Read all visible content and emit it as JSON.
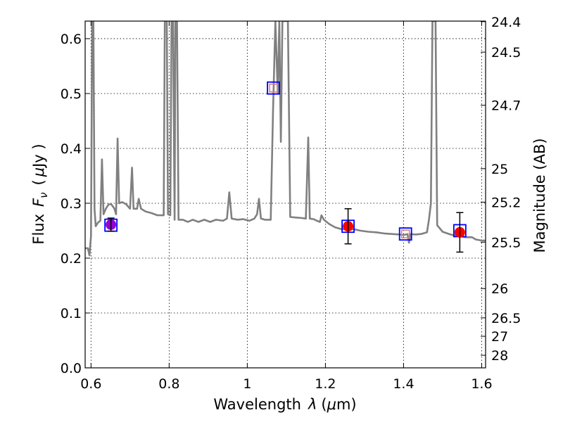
{
  "chart_data": {
    "type": "line",
    "xlabel_prefix": "Wavelength",
    "xlabel_var": "λ",
    "xlabel_unit_open": "(",
    "xlabel_unit_mu": "μ",
    "xlabel_unit_rest": "m)",
    "ylabel_prefix": "Flux",
    "ylabel_var": "F",
    "ylabel_sub": "ν",
    "ylabel_unit_open": "(",
    "ylabel_unit_mu": "μ",
    "ylabel_unit_rest": "Jy )",
    "y2label": "Magnitude (AB)",
    "xlim": [
      0.585,
      1.61
    ],
    "ylim": [
      0.0,
      0.632
    ],
    "grid": true,
    "x_ticks": [
      {
        "v": 0.6,
        "label": "0.6"
      },
      {
        "v": 0.8,
        "label": "0.8"
      },
      {
        "v": 1.0,
        "label": "1"
      },
      {
        "v": 1.2,
        "label": "1.2"
      },
      {
        "v": 1.4,
        "label": "1.4"
      },
      {
        "v": 1.6,
        "label": "1.6"
      }
    ],
    "y_ticks": [
      {
        "v": 0.0,
        "label": "0.0"
      },
      {
        "v": 0.1,
        "label": "0.1"
      },
      {
        "v": 0.2,
        "label": "0.2"
      },
      {
        "v": 0.3,
        "label": "0.3"
      },
      {
        "v": 0.4,
        "label": "0.4"
      },
      {
        "v": 0.5,
        "label": "0.5"
      },
      {
        "v": 0.6,
        "label": "0.6"
      }
    ],
    "y2_ticks": [
      {
        "mag": 24.4,
        "label": "24.4"
      },
      {
        "mag": 24.5,
        "label": "24.5"
      },
      {
        "mag": 24.7,
        "label": "24.7"
      },
      {
        "mag": 25,
        "label": "25"
      },
      {
        "mag": 25.2,
        "label": "25.2"
      },
      {
        "mag": 25.5,
        "label": "25.5"
      },
      {
        "mag": 26,
        "label": "26"
      },
      {
        "mag": 26.5,
        "label": "26.5"
      },
      {
        "mag": 27,
        "label": "27"
      },
      {
        "mag": 28,
        "label": "28"
      }
    ],
    "model_spectrum": {
      "color": "#808080",
      "points": [
        [
          0.585,
          0.218
        ],
        [
          0.592,
          0.218
        ],
        [
          0.596,
          0.205
        ],
        [
          0.6,
          0.24
        ],
        [
          0.603,
          0.632
        ],
        [
          0.606,
          0.632
        ],
        [
          0.609,
          0.29
        ],
        [
          0.612,
          0.258
        ],
        [
          0.618,
          0.265
        ],
        [
          0.624,
          0.268
        ],
        [
          0.628,
          0.38
        ],
        [
          0.632,
          0.28
        ],
        [
          0.638,
          0.29
        ],
        [
          0.645,
          0.298
        ],
        [
          0.652,
          0.298
        ],
        [
          0.66,
          0.29
        ],
        [
          0.664,
          0.28
        ],
        [
          0.668,
          0.418
        ],
        [
          0.672,
          0.3
        ],
        [
          0.68,
          0.302
        ],
        [
          0.69,
          0.298
        ],
        [
          0.7,
          0.29
        ],
        [
          0.705,
          0.365
        ],
        [
          0.709,
          0.29
        ],
        [
          0.718,
          0.29
        ],
        [
          0.722,
          0.308
        ],
        [
          0.728,
          0.29
        ],
        [
          0.74,
          0.285
        ],
        [
          0.755,
          0.282
        ],
        [
          0.77,
          0.278
        ],
        [
          0.786,
          0.278
        ],
        [
          0.789,
          0.632
        ],
        [
          0.794,
          0.632
        ],
        [
          0.797,
          0.28
        ],
        [
          0.803,
          0.278
        ],
        [
          0.806,
          0.632
        ],
        [
          0.81,
          0.632
        ],
        [
          0.814,
          0.27
        ],
        [
          0.816,
          0.632
        ],
        [
          0.82,
          0.632
        ],
        [
          0.824,
          0.27
        ],
        [
          0.835,
          0.27
        ],
        [
          0.848,
          0.266
        ],
        [
          0.86,
          0.27
        ],
        [
          0.875,
          0.266
        ],
        [
          0.89,
          0.27
        ],
        [
          0.905,
          0.266
        ],
        [
          0.92,
          0.27
        ],
        [
          0.938,
          0.268
        ],
        [
          0.948,
          0.272
        ],
        [
          0.954,
          0.32
        ],
        [
          0.96,
          0.272
        ],
        [
          0.975,
          0.27
        ],
        [
          0.99,
          0.271
        ],
        [
          1.005,
          0.268
        ],
        [
          1.018,
          0.272
        ],
        [
          1.025,
          0.28
        ],
        [
          1.03,
          0.308
        ],
        [
          1.035,
          0.272
        ],
        [
          1.045,
          0.27
        ],
        [
          1.06,
          0.27
        ],
        [
          1.066,
          0.47
        ],
        [
          1.072,
          0.632
        ],
        [
          1.078,
          0.5
        ],
        [
          1.082,
          0.632
        ],
        [
          1.086,
          0.412
        ],
        [
          1.09,
          0.632
        ],
        [
          1.098,
          0.632
        ],
        [
          1.104,
          0.632
        ],
        [
          1.11,
          0.275
        ],
        [
          1.125,
          0.274
        ],
        [
          1.14,
          0.273
        ],
        [
          1.15,
          0.272
        ],
        [
          1.156,
          0.42
        ],
        [
          1.16,
          0.272
        ],
        [
          1.17,
          0.271
        ],
        [
          1.178,
          0.268
        ],
        [
          1.186,
          0.266
        ],
        [
          1.19,
          0.278
        ],
        [
          1.196,
          0.27
        ],
        [
          1.21,
          0.262
        ],
        [
          1.225,
          0.256
        ],
        [
          1.24,
          0.253
        ],
        [
          1.255,
          0.252
        ],
        [
          1.27,
          0.253
        ],
        [
          1.29,
          0.25
        ],
        [
          1.31,
          0.248
        ],
        [
          1.33,
          0.247
        ],
        [
          1.35,
          0.245
        ],
        [
          1.37,
          0.244
        ],
        [
          1.39,
          0.243
        ],
        [
          1.4,
          0.242
        ],
        [
          1.41,
          0.244
        ],
        [
          1.414,
          0.228
        ],
        [
          1.418,
          0.244
        ],
        [
          1.43,
          0.243
        ],
        [
          1.445,
          0.244
        ],
        [
          1.46,
          0.247
        ],
        [
          1.465,
          0.27
        ],
        [
          1.47,
          0.3
        ],
        [
          1.474,
          0.632
        ],
        [
          1.482,
          0.632
        ],
        [
          1.486,
          0.26
        ],
        [
          1.5,
          0.248
        ],
        [
          1.52,
          0.243
        ],
        [
          1.54,
          0.24
        ],
        [
          1.56,
          0.238
        ],
        [
          1.575,
          0.238
        ],
        [
          1.585,
          0.234
        ],
        [
          1.6,
          0.232
        ],
        [
          1.61,
          0.232
        ]
      ]
    },
    "model_boxes": {
      "color": "#0000ff",
      "points": [
        {
          "x": 0.651,
          "y": 0.26
        },
        {
          "x": 1.067,
          "y": 0.51
        },
        {
          "x": 1.258,
          "y": 0.258
        },
        {
          "x": 1.405,
          "y": 0.244
        },
        {
          "x": 1.544,
          "y": 0.25
        }
      ]
    },
    "observed": {
      "color": "#ff0000",
      "points": [
        {
          "x": 0.651,
          "y": 0.261,
          "err": 0.012,
          "color": "#9400d3"
        },
        {
          "x": 1.258,
          "y": 0.258,
          "err": 0.032,
          "color": "#ff0000"
        },
        {
          "x": 1.544,
          "y": 0.247,
          "err": 0.036,
          "color": "#ff0000"
        }
      ]
    },
    "upper_limits": {
      "color": "#e08080",
      "points": [
        {
          "x": 1.067,
          "y": 0.51
        },
        {
          "x": 1.405,
          "y": 0.244
        }
      ]
    }
  }
}
